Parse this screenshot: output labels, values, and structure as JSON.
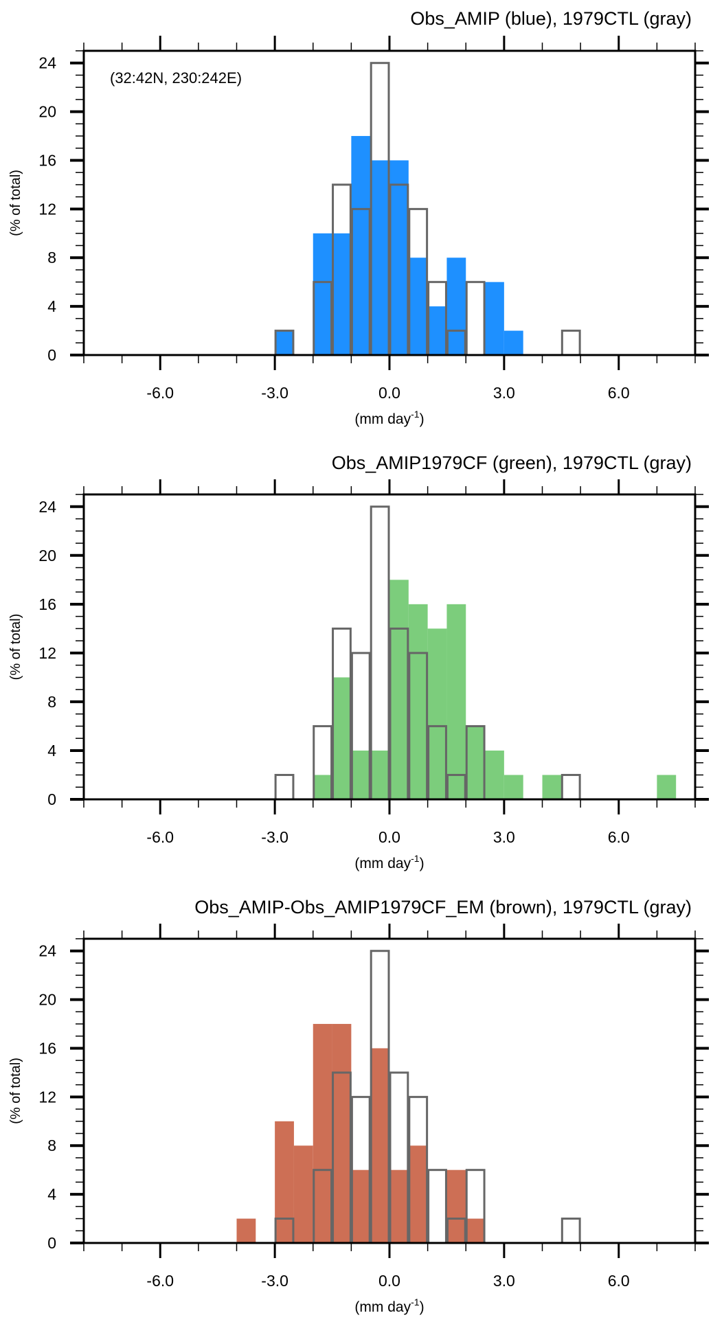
{
  "chart_data": [
    {
      "type": "bar",
      "title": "Obs_AMIP (blue), 1979CTL (gray)",
      "annotation": "(32:42N, 230:242E)",
      "xlabel": "(mm day",
      "xlabel_sup": "-1",
      "xlabel_close": ")",
      "ylabel": "(% of total)",
      "xlim": [
        -8,
        8
      ],
      "ylim": [
        0,
        25
      ],
      "bin_width": 0.5,
      "xticks": [
        "-6.0",
        "-3.0",
        "0.0",
        "3.0",
        "6.0"
      ],
      "yticks": [
        "0",
        "4",
        "8",
        "12",
        "16",
        "20",
        "24"
      ],
      "grid": false,
      "series": [
        {
          "name": "Obs_AMIP",
          "style": "filled",
          "color": "#1E90FF",
          "bin_start": [
            -3.0,
            -2.0,
            -1.5,
            -1.0,
            -0.5,
            0.0,
            0.5,
            1.0,
            1.5,
            2.5,
            3.0
          ],
          "values": [
            2,
            10,
            10,
            18,
            16,
            16,
            8,
            4,
            8,
            6,
            2
          ]
        },
        {
          "name": "1979CTL",
          "style": "outline",
          "color": "#666666",
          "bin_start": [
            -3.0,
            -2.0,
            -1.5,
            -1.0,
            -0.5,
            0.0,
            0.5,
            1.0,
            1.5,
            2.0,
            4.5
          ],
          "values": [
            2,
            6,
            14,
            12,
            24,
            14,
            12,
            6,
            2,
            6,
            2
          ]
        }
      ]
    },
    {
      "type": "bar",
      "title": "Obs_AMIP1979CF (green), 1979CTL (gray)",
      "xlabel": "(mm day",
      "xlabel_sup": "-1",
      "xlabel_close": ")",
      "ylabel": "(% of total)",
      "xlim": [
        -8,
        8
      ],
      "ylim": [
        0,
        25
      ],
      "bin_width": 0.5,
      "xticks": [
        "-6.0",
        "-3.0",
        "0.0",
        "3.0",
        "6.0"
      ],
      "yticks": [
        "0",
        "4",
        "8",
        "12",
        "16",
        "20",
        "24"
      ],
      "grid": false,
      "series": [
        {
          "name": "Obs_AMIP1979CF",
          "style": "filled",
          "color": "#7CCD7C",
          "bin_start": [
            -2.0,
            -1.5,
            -1.0,
            -0.5,
            0.0,
            0.5,
            1.0,
            1.5,
            2.0,
            2.5,
            3.0,
            4.0,
            7.0
          ],
          "values": [
            2,
            10,
            4,
            4,
            18,
            16,
            14,
            16,
            6,
            4,
            2,
            2,
            2
          ]
        },
        {
          "name": "1979CTL",
          "style": "outline",
          "color": "#666666",
          "bin_start": [
            -3.0,
            -2.0,
            -1.5,
            -1.0,
            -0.5,
            0.0,
            0.5,
            1.0,
            1.5,
            2.0,
            4.5
          ],
          "values": [
            2,
            6,
            14,
            12,
            24,
            14,
            12,
            6,
            2,
            6,
            2
          ]
        }
      ]
    },
    {
      "type": "bar",
      "title": "Obs_AMIP-Obs_AMIP1979CF_EM (brown), 1979CTL (gray)",
      "xlabel": "(mm day",
      "xlabel_sup": "-1",
      "xlabel_close": ")",
      "ylabel": "(% of total)",
      "xlim": [
        -8,
        8
      ],
      "ylim": [
        0,
        25
      ],
      "bin_width": 0.5,
      "xticks": [
        "-6.0",
        "-3.0",
        "0.0",
        "3.0",
        "6.0"
      ],
      "yticks": [
        "0",
        "4",
        "8",
        "12",
        "16",
        "20",
        "24"
      ],
      "grid": false,
      "series": [
        {
          "name": "Obs_AMIP-Obs_AMIP1979CF_EM",
          "style": "filled",
          "color": "#CD6F55",
          "bin_start": [
            -4.0,
            -3.0,
            -2.5,
            -2.0,
            -1.5,
            -1.0,
            -0.5,
            0.0,
            0.5,
            1.5,
            2.0
          ],
          "values": [
            2,
            10,
            8,
            18,
            18,
            6,
            16,
            6,
            8,
            6,
            2
          ]
        },
        {
          "name": "1979CTL",
          "style": "outline",
          "color": "#666666",
          "bin_start": [
            -3.0,
            -2.0,
            -1.5,
            -1.0,
            -0.5,
            0.0,
            0.5,
            1.0,
            1.5,
            2.0,
            4.5
          ],
          "values": [
            2,
            6,
            14,
            12,
            24,
            14,
            12,
            6,
            2,
            6,
            2
          ]
        }
      ]
    }
  ]
}
